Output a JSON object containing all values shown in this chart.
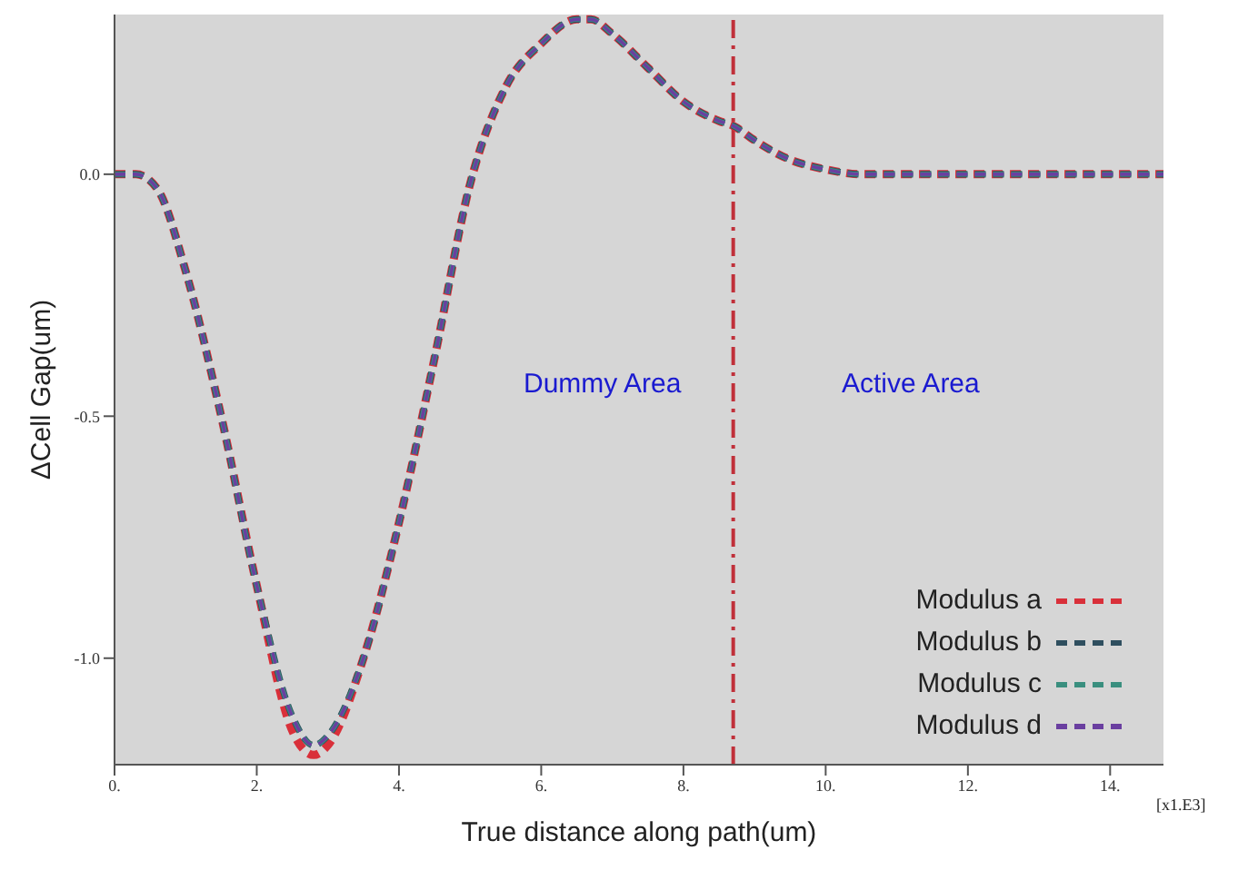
{
  "chart_data": {
    "type": "line",
    "xlabel": "True distance along path(um)",
    "ylabel": "ΔCell Gap(um)",
    "x": [
      0,
      0.3,
      0.6,
      1,
      1.5,
      2,
      2.5,
      2.8,
      3,
      3.5,
      4,
      4.5,
      5,
      5.5,
      6,
      6.5,
      6.7,
      7,
      7.5,
      8,
      8.5,
      8.7,
      9,
      9.5,
      10,
      10.5,
      11,
      12,
      13,
      14,
      14.75
    ],
    "series": [
      {
        "name": "Modulus a",
        "color": "#d9303a",
        "values": [
          0,
          0,
          -0.03,
          -0.2,
          -0.5,
          -0.85,
          -1.15,
          -1.2,
          -1.18,
          -1.0,
          -0.72,
          -0.38,
          -0.02,
          0.18,
          0.27,
          0.32,
          0.32,
          0.29,
          0.22,
          0.15,
          0.11,
          0.1,
          0.07,
          0.03,
          0.01,
          0,
          0,
          0,
          0,
          0,
          0
        ]
      },
      {
        "name": "Modulus b",
        "color": "#2f4f5f",
        "values": [
          0,
          0,
          -0.03,
          -0.2,
          -0.5,
          -0.85,
          -1.12,
          -1.18,
          -1.16,
          -1.0,
          -0.72,
          -0.38,
          -0.02,
          0.18,
          0.27,
          0.32,
          0.32,
          0.29,
          0.22,
          0.15,
          0.11,
          0.1,
          0.07,
          0.03,
          0.01,
          0,
          0,
          0,
          0,
          0,
          0
        ]
      },
      {
        "name": "Modulus c",
        "color": "#3a8f7f",
        "values": [
          0,
          0,
          -0.03,
          -0.2,
          -0.5,
          -0.85,
          -1.12,
          -1.18,
          -1.16,
          -1.0,
          -0.72,
          -0.38,
          -0.02,
          0.18,
          0.27,
          0.32,
          0.32,
          0.29,
          0.22,
          0.15,
          0.11,
          0.1,
          0.07,
          0.03,
          0.01,
          0,
          0,
          0,
          0,
          0,
          0
        ]
      },
      {
        "name": "Modulus d",
        "color": "#6a3fa0",
        "values": [
          0,
          0,
          -0.03,
          -0.2,
          -0.5,
          -0.85,
          -1.12,
          -1.18,
          -1.16,
          -1.0,
          -0.72,
          -0.38,
          -0.02,
          0.18,
          0.27,
          0.32,
          0.32,
          0.29,
          0.22,
          0.15,
          0.11,
          0.1,
          0.07,
          0.03,
          0.01,
          0,
          0,
          0,
          0,
          0,
          0
        ]
      }
    ],
    "xlim": [
      0,
      14.75
    ],
    "xticks": [
      {
        "value": 0,
        "label": "0."
      },
      {
        "value": 2,
        "label": "2."
      },
      {
        "value": 4,
        "label": "4."
      },
      {
        "value": 6,
        "label": "6."
      },
      {
        "value": 8,
        "label": "8."
      },
      {
        "value": 10,
        "label": "10."
      },
      {
        "value": 12,
        "label": "12."
      },
      {
        "value": 14,
        "label": "14."
      }
    ],
    "ylim": [
      -1.22,
      0.33
    ],
    "yticks": [
      {
        "value": -1,
        "label": "-1.0"
      },
      -0.5,
      {
        "value": 0,
        "label": "0.0"
      }
    ],
    "ref_lines": [
      {
        "axis": "x",
        "value": 8.7,
        "color": "#c0303a",
        "line_style": "dashdot"
      }
    ],
    "annotations": [
      "Dummy Area",
      "Active Area",
      "[x1.E3]"
    ],
    "legend": "bottom right",
    "line_style": "dashed",
    "marker": "none"
  }
}
